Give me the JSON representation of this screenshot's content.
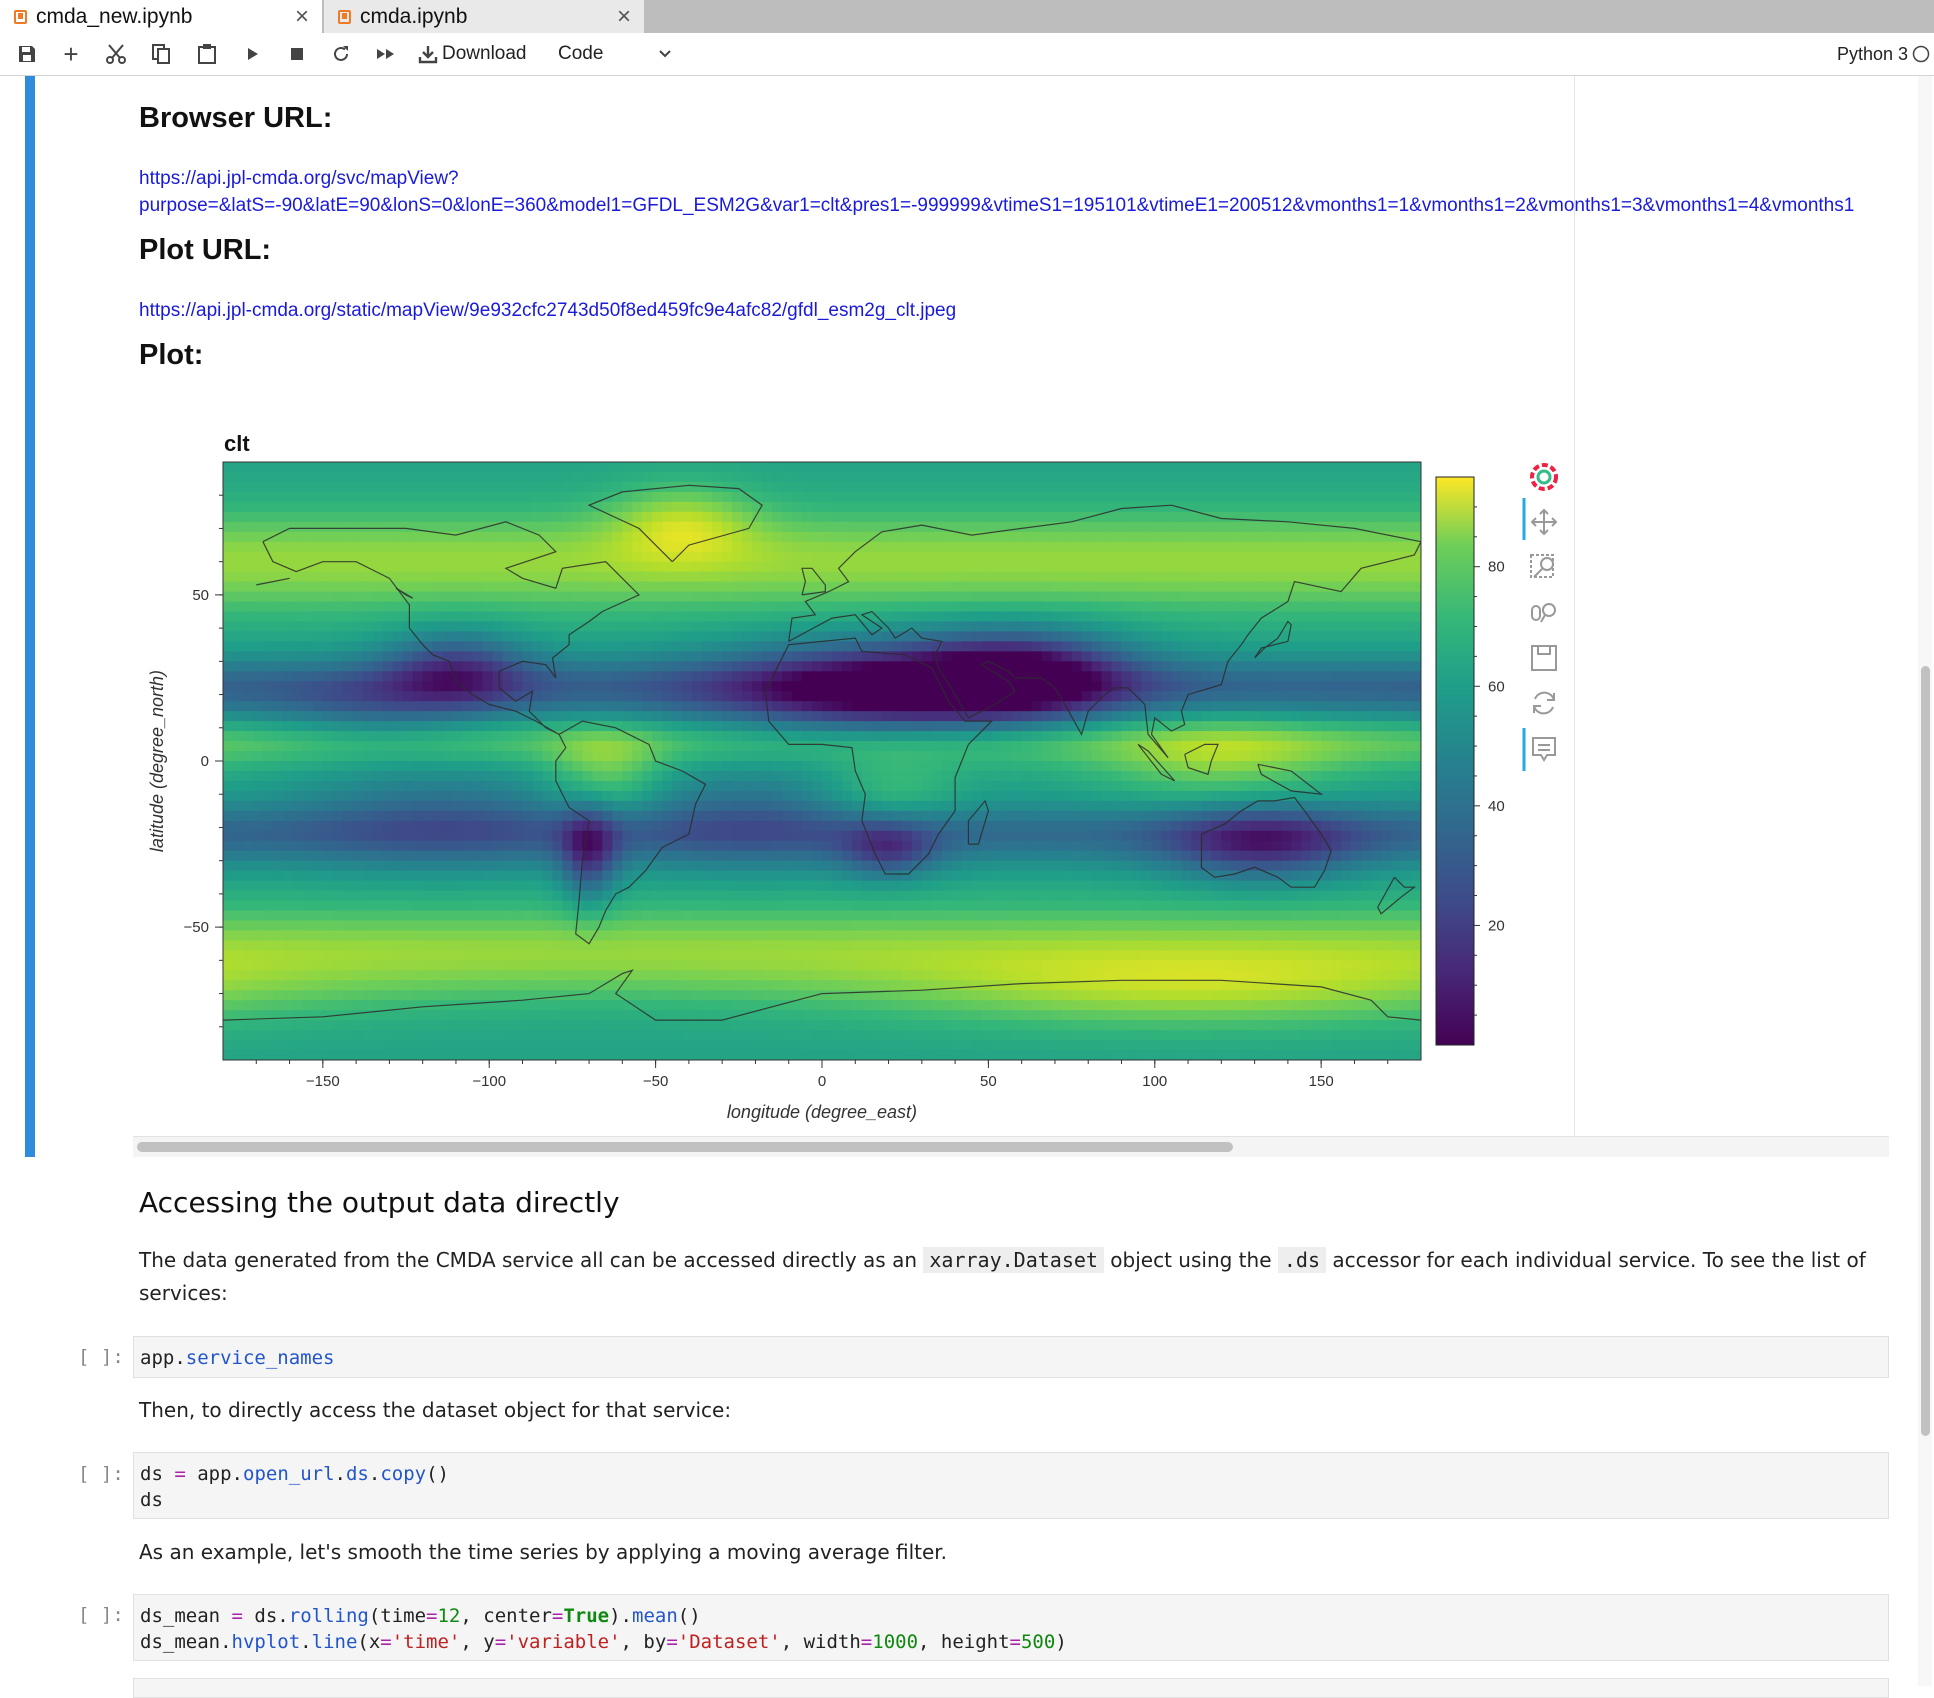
{
  "tabs": [
    {
      "label": "cmda_new.ipynb",
      "active": true
    },
    {
      "label": "cmda.ipynb",
      "active": false
    }
  ],
  "toolbar": {
    "download_label": "Download",
    "cell_type": "Code",
    "kernel": "Python 3"
  },
  "cells": {
    "browser_url_heading": "Browser URL:",
    "browser_url_line1": "https://api.jpl-cmda.org/svc/mapView?",
    "browser_url_line2": "purpose=&latS=-90&latE=90&lonS=0&lonE=360&model1=GFDL_ESM2G&var1=clt&pres1=-999999&vtimeS1=195101&vtimeE1=200512&vmonths1=1&vmonths1=2&vmonths1=3&vmonths1=4&vmonths1",
    "plot_url_heading": "Plot URL:",
    "plot_url": "https://api.jpl-cmda.org/static/mapView/9e932cfc2743d50f8ed459fc9e4afc82/gfdl_esm2g_clt.jpeg",
    "plot_heading": "Plot:",
    "section_heading": "Accessing the output data directly",
    "para1_a": "The data generated from the CMDA service all can be accessed directly as an ",
    "para1_code1": "xarray.Dataset",
    "para1_b": " object using the ",
    "para1_code2": ".ds",
    "para1_c": " accessor for each individual service. To see the list of",
    "para1_d": "services:",
    "prompt": "[ ]:",
    "code1": {
      "obj": "app",
      "dot": ".",
      "attr": "service_names"
    },
    "para2": "Then, to directly access the dataset object for that service:",
    "code2_line1": {
      "lhs": "ds ",
      "eq": "=",
      "obj": " app",
      "d1": ".",
      "a1": "open_url",
      "d2": ".",
      "a2": "ds",
      "d3": ".",
      "a3": "copy",
      "tail": "()"
    },
    "code2_line2": "ds",
    "para3": "As an example, let's smooth the time series by applying a moving average filter.",
    "code3_line1": {
      "lhs": "ds_mean ",
      "eq": "=",
      "obj": " ds",
      "d1": ".",
      "a1": "rolling",
      "p1": "(time",
      "eq2": "=",
      "n1": "12",
      "c1": ", center",
      "eq3": "=",
      "kw": "True",
      "p2": ").",
      "a2": "mean",
      "tail": "()"
    },
    "code3_line2": {
      "obj": "ds_mean",
      "d1": ".",
      "a1": "hvplot",
      "d2": ".",
      "a2": "line",
      "p1": "(x",
      "eq1": "=",
      "s1": "'time'",
      "c1": ", y",
      "eq2": "=",
      "s2": "'variable'",
      "c2": ", by",
      "eq3": "=",
      "s3": "'Dataset'",
      "c3": ", width",
      "eq4": "=",
      "n1": "1000",
      "c4": ", height",
      "eq5": "=",
      "n2": "500",
      "tail": ")"
    }
  },
  "chart_data": {
    "type": "heatmap",
    "title": "clt",
    "xlabel": "longitude (degree_east)",
    "ylabel": "latitude (degree_north)",
    "xlim": [
      -180,
      180
    ],
    "ylim": [
      -90,
      90
    ],
    "x_ticks": [
      -150,
      -100,
      -50,
      0,
      50,
      100,
      150
    ],
    "x_tick_labels": [
      "−150",
      "−100",
      "−50",
      "0",
      "50",
      "100",
      "150"
    ],
    "y_ticks": [
      50,
      0,
      -50
    ],
    "y_tick_labels": [
      "50",
      "0",
      "−50"
    ],
    "colorbar_ticks": [
      80,
      60,
      40,
      20
    ],
    "colorbar_range": [
      0,
      95
    ],
    "colormap": "viridis",
    "coastlines": true,
    "toolbar_tools": [
      "bokeh-logo-icon",
      "pan-icon",
      "box-zoom-icon",
      "wheel-zoom-icon",
      "save-icon",
      "reset-icon",
      "hover-icon"
    ]
  }
}
